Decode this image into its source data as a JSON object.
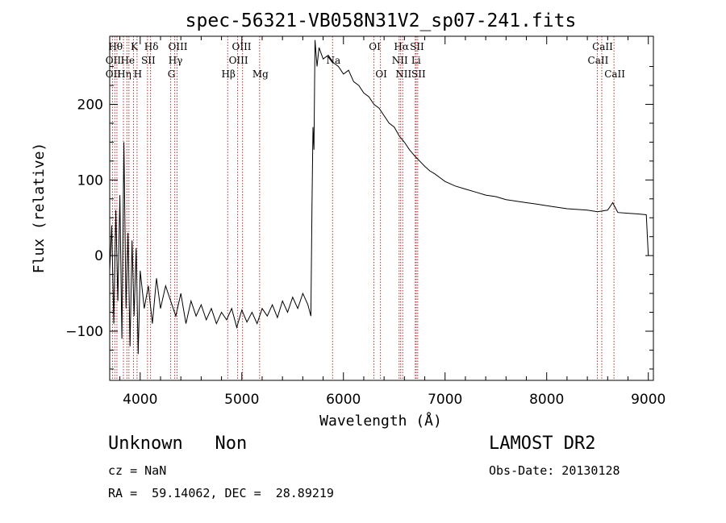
{
  "chart_data": {
    "type": "line",
    "title": "spec-56321-VB058N31V2_sp07-241.fits",
    "xlabel": "Wavelength (Å)",
    "ylabel": "Flux (relative)",
    "xlim": [
      3700,
      9050
    ],
    "ylim": [
      -165,
      290
    ],
    "xticks": [
      4000,
      5000,
      6000,
      7000,
      8000,
      9000
    ],
    "yticks": [
      -100,
      0,
      100,
      200
    ],
    "grid": false,
    "series": [
      {
        "points": [
          [
            3700,
            -20
          ],
          [
            3720,
            40
          ],
          [
            3740,
            -90
          ],
          [
            3760,
            60
          ],
          [
            3780,
            -60
          ],
          [
            3800,
            80
          ],
          [
            3820,
            -110
          ],
          [
            3840,
            150
          ],
          [
            3860,
            -70
          ],
          [
            3880,
            30
          ],
          [
            3900,
            -120
          ],
          [
            3920,
            20
          ],
          [
            3940,
            -80
          ],
          [
            3960,
            10
          ],
          [
            3980,
            -130
          ],
          [
            4000,
            -20
          ],
          [
            4040,
            -70
          ],
          [
            4080,
            -40
          ],
          [
            4120,
            -90
          ],
          [
            4160,
            -30
          ],
          [
            4200,
            -70
          ],
          [
            4250,
            -40
          ],
          [
            4300,
            -60
          ],
          [
            4350,
            -80
          ],
          [
            4400,
            -50
          ],
          [
            4450,
            -90
          ],
          [
            4500,
            -60
          ],
          [
            4550,
            -80
          ],
          [
            4600,
            -65
          ],
          [
            4650,
            -85
          ],
          [
            4700,
            -70
          ],
          [
            4750,
            -90
          ],
          [
            4800,
            -75
          ],
          [
            4850,
            -85
          ],
          [
            4900,
            -70
          ],
          [
            4950,
            -95
          ],
          [
            5000,
            -72
          ],
          [
            5050,
            -88
          ],
          [
            5100,
            -75
          ],
          [
            5150,
            -90
          ],
          [
            5200,
            -70
          ],
          [
            5250,
            -80
          ],
          [
            5300,
            -65
          ],
          [
            5350,
            -82
          ],
          [
            5400,
            -60
          ],
          [
            5450,
            -75
          ],
          [
            5500,
            -55
          ],
          [
            5550,
            -70
          ],
          [
            5600,
            -50
          ],
          [
            5650,
            -65
          ],
          [
            5680,
            -80
          ],
          [
            5690,
            60
          ],
          [
            5700,
            170
          ],
          [
            5710,
            140
          ],
          [
            5720,
            285
          ],
          [
            5740,
            250
          ],
          [
            5760,
            275
          ],
          [
            5800,
            260
          ],
          [
            5850,
            265
          ],
          [
            5900,
            255
          ],
          [
            5950,
            250
          ],
          [
            6000,
            240
          ],
          [
            6050,
            245
          ],
          [
            6100,
            230
          ],
          [
            6150,
            225
          ],
          [
            6200,
            215
          ],
          [
            6250,
            210
          ],
          [
            6300,
            200
          ],
          [
            6350,
            195
          ],
          [
            6400,
            185
          ],
          [
            6450,
            175
          ],
          [
            6500,
            170
          ],
          [
            6550,
            158
          ],
          [
            6600,
            150
          ],
          [
            6650,
            140
          ],
          [
            6700,
            132
          ],
          [
            6750,
            125
          ],
          [
            6800,
            118
          ],
          [
            6850,
            112
          ],
          [
            6900,
            108
          ],
          [
            6950,
            103
          ],
          [
            7000,
            98
          ],
          [
            7100,
            92
          ],
          [
            7200,
            88
          ],
          [
            7300,
            84
          ],
          [
            7400,
            80
          ],
          [
            7500,
            78
          ],
          [
            7600,
            74
          ],
          [
            7700,
            72
          ],
          [
            7800,
            70
          ],
          [
            7900,
            68
          ],
          [
            8000,
            66
          ],
          [
            8100,
            64
          ],
          [
            8200,
            62
          ],
          [
            8300,
            61
          ],
          [
            8400,
            60
          ],
          [
            8500,
            58
          ],
          [
            8600,
            60
          ],
          [
            8650,
            70
          ],
          [
            8700,
            57
          ],
          [
            8800,
            56
          ],
          [
            8900,
            55
          ],
          [
            8980,
            54
          ],
          [
            9000,
            0
          ]
        ]
      }
    ],
    "lines": [
      {
        "w": 3727,
        "label": "OII"
      },
      {
        "w": 3750,
        "label": "Hθ"
      },
      {
        "w": 3771,
        "label": "H"
      },
      {
        "w": 3835,
        "label": "Hη"
      },
      {
        "w": 3869,
        "label": "He"
      },
      {
        "w": 3889,
        "label": "He"
      },
      {
        "w": 3934,
        "label": "K"
      },
      {
        "w": 3969,
        "label": "H"
      },
      {
        "w": 4072,
        "label": "SII"
      },
      {
        "w": 4102,
        "label": "Hδ"
      },
      {
        "w": 4300,
        "label": "G"
      },
      {
        "w": 4340,
        "label": "Hγ"
      },
      {
        "w": 4363,
        "label": "OIII"
      },
      {
        "w": 4861,
        "label": "Hβ"
      },
      {
        "w": 4959,
        "label": "OIII"
      },
      {
        "w": 5007,
        "label": "OIII"
      },
      {
        "w": 5175,
        "label": "Mg"
      },
      {
        "w": 5893,
        "label": "Na"
      },
      {
        "w": 6300,
        "label": "OI"
      },
      {
        "w": 6364,
        "label": "OI"
      },
      {
        "w": 6548,
        "label": "NII"
      },
      {
        "w": 6563,
        "label": "Hα"
      },
      {
        "w": 6583,
        "label": "NII"
      },
      {
        "w": 6707,
        "label": "Li"
      },
      {
        "w": 6716,
        "label": "SII"
      },
      {
        "w": 6731,
        "label": "SII"
      },
      {
        "w": 8498,
        "label": "CaII"
      },
      {
        "w": 8542,
        "label": "CaII"
      },
      {
        "w": 8662,
        "label": "CaII"
      }
    ]
  },
  "labels": {
    "title": "spec-56321-VB058N31V2_sp07-241.fits",
    "class_line": "Unknown   Non",
    "cz": "cz = NaN",
    "radec": "RA =  59.14062, DEC =  28.89219",
    "survey": "LAMOST DR2",
    "obs_date": "Obs-Date: 20130128"
  },
  "line_labels": {
    "row1": [
      "Hθ",
      "K",
      "Hδ",
      "OIII",
      "OIII",
      "OI",
      "Hα",
      "SII",
      "CaII"
    ],
    "row2": [
      "OII",
      "He",
      "SII",
      "Hγ",
      "OIII",
      "Na",
      "NII",
      "Li",
      "CaII"
    ],
    "row3": [
      "OII",
      "Hη",
      "H",
      "G",
      "Hβ",
      "Mg",
      "OI",
      "NII",
      "SII",
      "CaII"
    ]
  }
}
